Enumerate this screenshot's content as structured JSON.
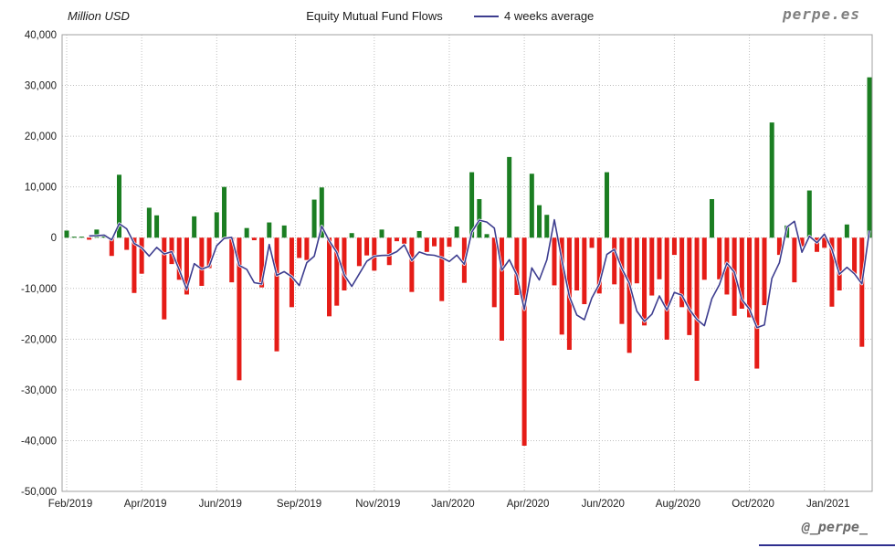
{
  "header": {
    "axis_unit_label": "Million USD",
    "title": "Equity Mutual Fund Flows",
    "legend": {
      "label": "4 weeks average"
    },
    "brand": "perpe.es"
  },
  "footer": {
    "handle": "@_perpe_"
  },
  "chart_data": {
    "type": "bar",
    "title": "Equity Mutual Fund Flows",
    "unit": "Million USD",
    "x_range": "weekly bars, Feb 2019 - Feb 2021",
    "ylim": [
      -50000,
      40000
    ],
    "ytick_step": 10000,
    "ytick_labels": [
      "40,000",
      "30,000",
      "20,000",
      "10,000",
      "0",
      "-10,000",
      "-20,000",
      "-30,000",
      "-40,000",
      "-50,000"
    ],
    "xtick_labels": [
      "Feb/2019",
      "Apr/2019",
      "Jun/2019",
      "Sep/2019",
      "Nov/2019",
      "Jan/2020",
      "Apr/2020",
      "Jun/2020",
      "Aug/2020",
      "Oct/2020",
      "Jan/2021"
    ],
    "xtick_bar_index": [
      0,
      10,
      20,
      30.5,
      41,
      51,
      61,
      71,
      81,
      91,
      101
    ],
    "grid": true,
    "legend_position": "top",
    "series": [
      {
        "name": "Weekly equity mutual fund flow",
        "type": "bar",
        "values": [
          1400,
          200,
          200,
          -400,
          1600,
          600,
          -3600,
          12400,
          -2400,
          -10900,
          -7100,
          5900,
          4400,
          -16100,
          -5200,
          -8300,
          -11200,
          4200,
          -9500,
          -6000,
          5000,
          10000,
          -8800,
          -28100,
          1900,
          -500,
          -9800,
          3000,
          -22400,
          2400,
          -13700,
          -4000,
          -4400,
          7500,
          9900,
          -15500,
          -13400,
          -10400,
          900,
          -5600,
          -3500,
          -6500,
          1600,
          -5400,
          -700,
          -1200,
          -10700,
          1300,
          -2800,
          -1700,
          -12500,
          -1800,
          2200,
          -8900,
          12900,
          7600,
          700,
          -13700,
          -20300,
          15900,
          -11300,
          -41000,
          12600,
          6400,
          4500,
          -9400,
          -19100,
          -22100,
          -10400,
          -13100,
          -2000,
          -11000,
          12900,
          -9200,
          -17000,
          -22700,
          -9000,
          -17300,
          -11400,
          -8200,
          -20100,
          -3400,
          -13700,
          -19200,
          -28200,
          -8300,
          7600,
          -8200,
          -11200,
          -15400,
          -14000,
          -15700,
          -25800,
          -13300,
          22700,
          -3400,
          2400,
          -8800,
          -1700,
          9300,
          -2800,
          -2000,
          -13600,
          -10400,
          2600,
          -7100,
          -21500,
          31600
        ]
      },
      {
        "name": "4 weeks average",
        "type": "line",
        "derived": "4-week rolling mean of weekly flow"
      }
    ],
    "colors": {
      "positive": "#1b7e22",
      "negative": "#e51c17",
      "average_line": "#3d3d8f",
      "grid": "#bfbfbf"
    }
  }
}
